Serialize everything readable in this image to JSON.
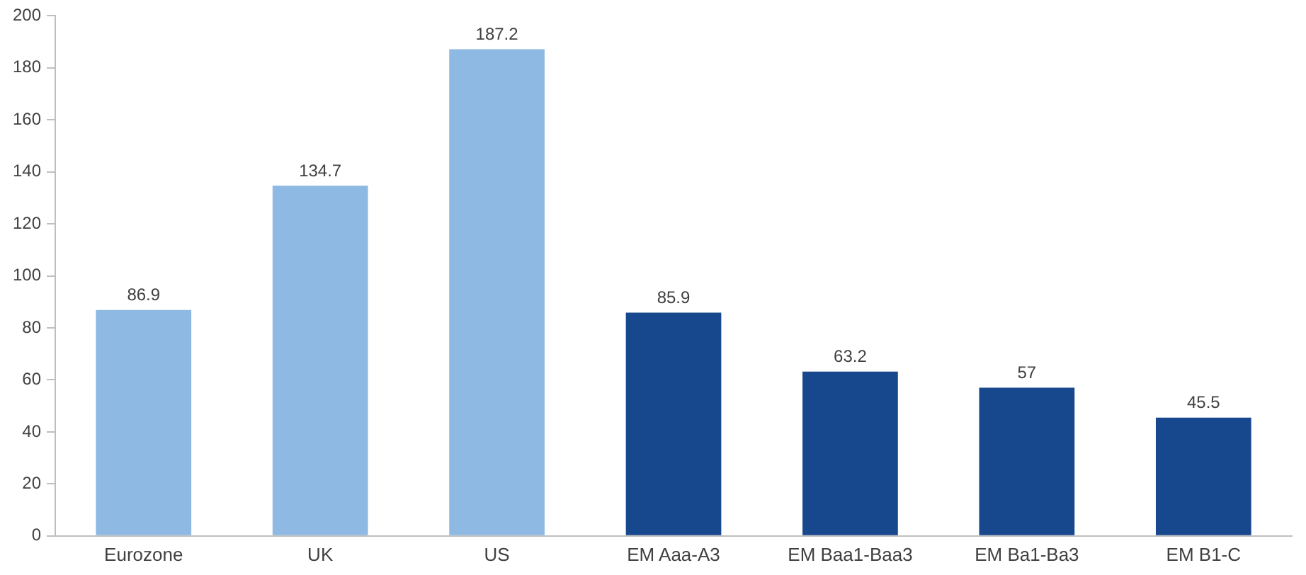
{
  "chart_data": {
    "type": "bar",
    "categories": [
      "Eurozone",
      "UK",
      "US",
      "EM Aaa-A3",
      "EM Baa1-Baa3",
      "EM Ba1-Ba3",
      "EM B1-C"
    ],
    "values": [
      86.9,
      134.7,
      187.2,
      85.9,
      63.2,
      57,
      45.5
    ],
    "colors": [
      "#8db9e3",
      "#8db9e3",
      "#8db9e3",
      "#17478c",
      "#17478c",
      "#17478c",
      "#17478c"
    ],
    "ylim": [
      0,
      200
    ],
    "yticks": [
      0,
      20,
      40,
      60,
      80,
      100,
      120,
      140,
      160,
      180,
      200
    ],
    "data_labels": true,
    "grid": false,
    "legend": false
  }
}
